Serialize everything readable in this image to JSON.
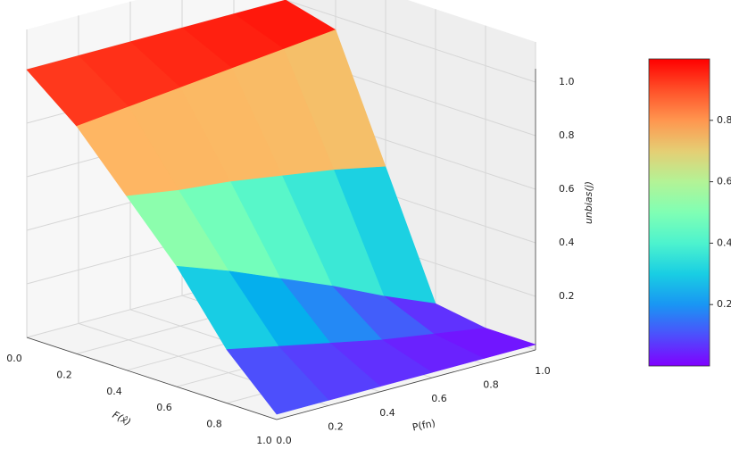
{
  "chart_data": {
    "type": "surface3d",
    "xlabel": "F(x̂)",
    "ylabel": "P(fn)",
    "zlabel": "unbias(j)",
    "x": [
      0,
      0.2,
      0.4,
      0.6,
      0.8,
      1
    ],
    "y": [
      0,
      0.2,
      0.4,
      0.6,
      0.8,
      1
    ],
    "z": [
      [
        1,
        1,
        1,
        1,
        1,
        1
      ],
      [
        0.85,
        0.87,
        0.89,
        0.91,
        0.93,
        0.95
      ],
      [
        0.65,
        0.62,
        0.6,
        0.57,
        0.54,
        0.5
      ],
      [
        0.45,
        0.38,
        0.3,
        0.22,
        0.13,
        0.05
      ],
      [
        0.2,
        0.16,
        0.12,
        0.08,
        0.05,
        0.02
      ],
      [
        0.02,
        0.02,
        0.02,
        0.02,
        0.02,
        0.02
      ]
    ],
    "xlim": [
      0,
      1
    ],
    "ylim": [
      0,
      1
    ],
    "zlim": [
      0,
      1
    ],
    "xticks": [
      {
        "value": 0,
        "label": "0.0"
      },
      0.2,
      0.4,
      0.6,
      0.8,
      {
        "value": 1,
        "label": "1.0"
      }
    ],
    "yticks": [
      {
        "value": 0,
        "label": "0.0"
      },
      0.2,
      0.4,
      0.6,
      0.8,
      {
        "value": 1,
        "label": "1.0"
      }
    ],
    "zticks": [
      0.2,
      0.4,
      0.6,
      0.8,
      {
        "value": 1,
        "label": "1.0"
      }
    ],
    "colormap": "rainbow",
    "clim": [
      0,
      1
    ],
    "colorbar_ticks": [
      0.2,
      0.4,
      0.6,
      0.8
    ],
    "grid": true
  }
}
